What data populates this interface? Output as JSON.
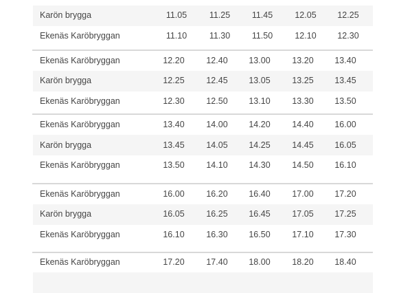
{
  "timetable": {
    "groups": [
      {
        "rows": [
          {
            "stop": "",
            "times": [
              "",
              "",
              "",
              "",
              ""
            ]
          },
          {
            "stop": "Karön brygga",
            "times": [
              "11.05",
              "11.25",
              "11.45",
              "12.05",
              "12.25"
            ]
          },
          {
            "stop": "Ekenäs Karöbryggan",
            "times": [
              "11.10",
              "11.30",
              "11.50",
              "12.10",
              "12.30"
            ]
          }
        ]
      },
      {
        "rows": [
          {
            "stop": "Ekenäs Karöbryggan",
            "times": [
              "12.20",
              "12.40",
              "13.00",
              "13.20",
              "13.40"
            ]
          },
          {
            "stop": "Karön brygga",
            "times": [
              "12.25",
              "12.45",
              "13.05",
              "13.25",
              "13.45"
            ]
          },
          {
            "stop": "Ekenäs Karöbryggan",
            "times": [
              "12.30",
              "12.50",
              "13.10",
              "13.30",
              "13.50"
            ]
          }
        ]
      },
      {
        "rows": [
          {
            "stop": "Ekenäs Karöbryggan",
            "times": [
              "13.40",
              "14.00",
              "14.20",
              "14.40",
              "16.00"
            ]
          },
          {
            "stop": "Karön brygga",
            "times": [
              "13.45",
              "14.05",
              "14.25",
              "14.45",
              "16.05"
            ]
          },
          {
            "stop": "Ekenäs Karöbryggan",
            "times": [
              "13.50",
              "14.10",
              "14.30",
              "14.50",
              "16.10"
            ]
          }
        ]
      },
      {
        "rows": [
          {
            "stop": "Ekenäs Karöbryggan",
            "times": [
              "16.00",
              "16.20",
              "16.40",
              "17.00",
              "17.20"
            ]
          },
          {
            "stop": "Karön brygga",
            "times": [
              "16.05",
              "16.25",
              "16.45",
              "17.05",
              "17.25"
            ]
          },
          {
            "stop": "Ekenäs Karöbryggan",
            "times": [
              "16.10",
              "16.30",
              "16.50",
              "17.10",
              "17.30"
            ]
          }
        ]
      },
      {
        "rows": [
          {
            "stop": "Ekenäs Karöbryggan",
            "times": [
              "17.20",
              "17.40",
              "18.00",
              "18.20",
              "18.40"
            ]
          }
        ]
      }
    ]
  }
}
